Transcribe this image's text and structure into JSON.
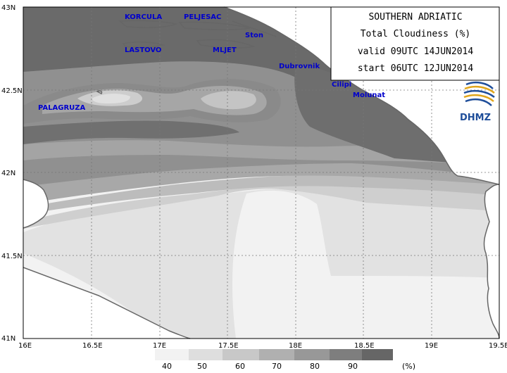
{
  "title": {
    "line1": "SOUTHERN ADRIATIC",
    "line2": "Total Cloudiness (%)",
    "line3": "valid 09UTC 14JUN2014",
    "line4": "start 06UTC 12JUN2014"
  },
  "logo": {
    "text": "DHMZ"
  },
  "axes": {
    "lat_labels": [
      "43N",
      "42.5N",
      "42N",
      "41.5N",
      "41N"
    ],
    "lon_labels": [
      "16E",
      "16.5E",
      "17E",
      "17.5E",
      "18E",
      "18.5E",
      "19E",
      "19.5E"
    ]
  },
  "places": [
    {
      "name": "KORCULA"
    },
    {
      "name": "PELJESAC"
    },
    {
      "name": "Ston"
    },
    {
      "name": "LASTOVO"
    },
    {
      "name": "MLJET"
    },
    {
      "name": "Dubrovnik"
    },
    {
      "name": "Cilipi"
    },
    {
      "name": "Molunat"
    },
    {
      "name": "PALAGRUZA"
    }
  ],
  "legend": {
    "levels": [
      "40",
      "50",
      "60",
      "70",
      "80",
      "90"
    ],
    "unit": "(%)",
    "colors": [
      "#f2f2f2",
      "#dedede",
      "#c8c8c8",
      "#b0b0b0",
      "#989898",
      "#7e7e7e",
      "#666666"
    ]
  },
  "colors": {
    "land": "#ffffff",
    "coast": "#666666",
    "grid": "#777777",
    "place_text": "#0000cc"
  }
}
